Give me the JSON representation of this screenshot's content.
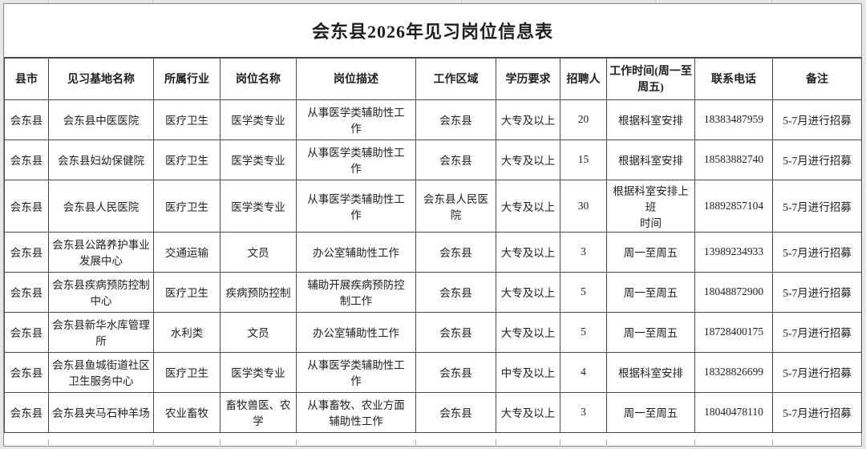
{
  "page": {
    "title": "会东县2026年见习岗位信息表"
  },
  "table": {
    "columns": [
      {
        "id": "county",
        "label": "县市"
      },
      {
        "id": "base-name",
        "label": "见习基地名称"
      },
      {
        "id": "industry",
        "label": "所属行业"
      },
      {
        "id": "position-name",
        "label": "岗位名称"
      },
      {
        "id": "position-desc",
        "label": "岗位描述"
      },
      {
        "id": "work-area",
        "label": "工作区域"
      },
      {
        "id": "education",
        "label": "学历要求"
      },
      {
        "id": "headcount",
        "label": "招聘人"
      },
      {
        "id": "work-time",
        "label": "工作时间(周一至\n周五)"
      },
      {
        "id": "phone",
        "label": "联系电话"
      },
      {
        "id": "remark",
        "label": "备注"
      }
    ],
    "rows": [
      [
        "会东县",
        "会东县中医医院",
        "医疗卫生",
        "医学类专业",
        "从事医学类辅助性工\n作",
        "会东县",
        "大专及以上",
        "20",
        "根据科室安排",
        "18383487959",
        "5-7月进行招募"
      ],
      [
        "会东县",
        "会东县妇幼保健院",
        "医疗卫生",
        "医学类专业",
        "从事医学类辅助性工\n作",
        "会东县",
        "大专及以上",
        "15",
        "根据科室安排",
        "18583882740",
        "5-7月进行招募"
      ],
      [
        "会东县",
        "会东县人民医院",
        "医疗卫生",
        "医学类专业",
        "从事医学类辅助性工\n作",
        "会东县人民医院",
        "大专及以上",
        "30",
        "根据科室安排上班\n时间",
        "18892857104",
        "5-7月进行招募"
      ],
      [
        "会东县",
        "会东县公路养护事业\n发展中心",
        "交通运输",
        "文员",
        "办公室辅助性工作",
        "会东县",
        "大专及以上",
        "3",
        "周一至周五",
        "13989234933",
        "5-7月进行招募"
      ],
      [
        "会东县",
        "会东县疾病预防控制\n中心",
        "医疗卫生",
        "疾病预防控制",
        "辅助开展疾病预防控\n制工作",
        "会东县",
        "大专及以上",
        "5",
        "周一至周五",
        "18048872900",
        "5-7月进行招募"
      ],
      [
        "会东县",
        "会东县新华水库管理\n所",
        "水利类",
        "文员",
        "办公室辅助性工作",
        "会东县",
        "大专及以上",
        "5",
        "周一至周五",
        "18728400175",
        "5-7月进行招募"
      ],
      [
        "会东县",
        "会东县鱼城街道社区\n卫生服务中心",
        "医疗卫生",
        "医学类专业",
        "从事医学类辅助性工\n作",
        "会东县",
        "中专及以上",
        "4",
        "根据科室安排",
        "18328826699",
        "5-7月进行招募"
      ],
      [
        "会东县",
        "会东县夹马石种羊场",
        "农业畜牧",
        "畜牧兽医、农学",
        "从事畜牧、农业方面\n辅助性工作",
        "会东县",
        "大专及以上",
        "3",
        "周一至周五",
        "18040478110",
        "5-7月进行招募"
      ]
    ]
  },
  "colors": {
    "border": "#4a4a4a",
    "text": "#1f1f1f",
    "page_background": "#e7e7e7",
    "sheet_background": "#ffffff"
  }
}
